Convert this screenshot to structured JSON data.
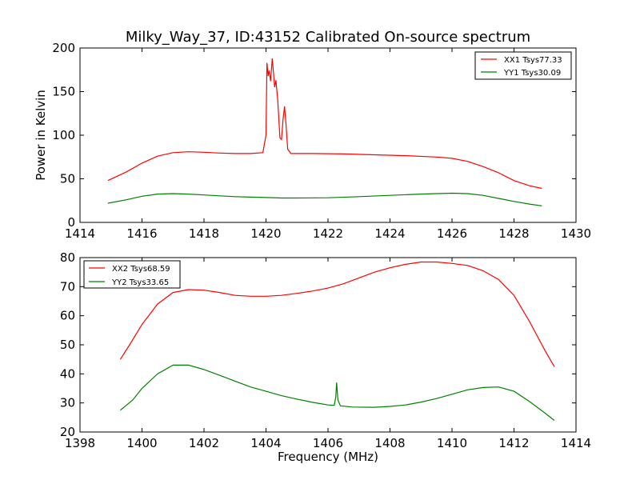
{
  "title": "Milky_Way_37, ID:43152 Calibrated On-source spectrum",
  "chart_data": [
    {
      "type": "line",
      "ylabel": "Power in Kelvin",
      "xlabel": "",
      "xlim": [
        1414,
        1430
      ],
      "ylim": [
        0,
        200
      ],
      "xticks": [
        1414,
        1416,
        1418,
        1420,
        1422,
        1424,
        1426,
        1428,
        1430
      ],
      "yticks": [
        0,
        50,
        100,
        150,
        200
      ],
      "legend_position": "top-right",
      "series": [
        {
          "name": "XX1 Tsys77.33",
          "color": "#ff0000",
          "points": [
            [
              1414.9,
              48
            ],
            [
              1415.5,
              58
            ],
            [
              1416.0,
              68
            ],
            [
              1416.5,
              76
            ],
            [
              1417.0,
              80
            ],
            [
              1417.5,
              81
            ],
            [
              1418.0,
              80.5
            ],
            [
              1418.5,
              79.5
            ],
            [
              1419.0,
              79
            ],
            [
              1419.5,
              79
            ],
            [
              1419.9,
              80
            ],
            [
              1420.0,
              100
            ],
            [
              1420.03,
              183
            ],
            [
              1420.07,
              168
            ],
            [
              1420.1,
              174
            ],
            [
              1420.15,
              162
            ],
            [
              1420.2,
              188
            ],
            [
              1420.25,
              168
            ],
            [
              1420.28,
              155
            ],
            [
              1420.32,
              163
            ],
            [
              1420.38,
              140
            ],
            [
              1420.45,
              97
            ],
            [
              1420.5,
              95
            ],
            [
              1420.55,
              118
            ],
            [
              1420.6,
              133
            ],
            [
              1420.65,
              110
            ],
            [
              1420.7,
              84
            ],
            [
              1420.8,
              79
            ],
            [
              1421.5,
              79
            ],
            [
              1422.5,
              78.5
            ],
            [
              1423.5,
              77.5
            ],
            [
              1424.5,
              76.5
            ],
            [
              1425.5,
              75
            ],
            [
              1426.0,
              73.5
            ],
            [
              1426.5,
              70
            ],
            [
              1427.0,
              64
            ],
            [
              1427.5,
              57
            ],
            [
              1428.0,
              48
            ],
            [
              1428.5,
              42
            ],
            [
              1428.9,
              39
            ]
          ]
        },
        {
          "name": "YY1 Tsys30.09",
          "color": "#008000",
          "points": [
            [
              1414.9,
              22
            ],
            [
              1415.5,
              26
            ],
            [
              1416.0,
              30
            ],
            [
              1416.5,
              32.5
            ],
            [
              1417.0,
              33
            ],
            [
              1417.5,
              32.5
            ],
            [
              1418.0,
              31.5
            ],
            [
              1418.5,
              30.5
            ],
            [
              1419.0,
              29.5
            ],
            [
              1419.5,
              29
            ],
            [
              1420.0,
              28.5
            ],
            [
              1420.5,
              28
            ],
            [
              1421.0,
              28
            ],
            [
              1422.0,
              28.3
            ],
            [
              1423.0,
              29.5
            ],
            [
              1424.0,
              31
            ],
            [
              1425.0,
              32.5
            ],
            [
              1425.5,
              33
            ],
            [
              1426.0,
              33.5
            ],
            [
              1426.5,
              33
            ],
            [
              1427.0,
              31
            ],
            [
              1427.5,
              27.5
            ],
            [
              1428.0,
              24
            ],
            [
              1428.5,
              21
            ],
            [
              1428.9,
              19
            ]
          ]
        }
      ]
    },
    {
      "type": "line",
      "ylabel": "",
      "xlabel": "Frequency (MHz)",
      "xlim": [
        1398,
        1414
      ],
      "ylim": [
        20,
        80
      ],
      "xticks": [
        1398,
        1400,
        1402,
        1404,
        1406,
        1408,
        1410,
        1412,
        1414
      ],
      "yticks": [
        20,
        30,
        40,
        50,
        60,
        70,
        80
      ],
      "legend_position": "top-left",
      "series": [
        {
          "name": "XX2 Tsys68.59",
          "color": "#ff0000",
          "points": [
            [
              1399.3,
              45
            ],
            [
              1399.6,
              50
            ],
            [
              1400.0,
              57
            ],
            [
              1400.5,
              64
            ],
            [
              1401.0,
              68
            ],
            [
              1401.5,
              69
            ],
            [
              1402.0,
              68.8
            ],
            [
              1402.5,
              68
            ],
            [
              1403.0,
              67
            ],
            [
              1403.5,
              66.7
            ],
            [
              1404.0,
              66.7
            ],
            [
              1404.5,
              67
            ],
            [
              1405.0,
              67.7
            ],
            [
              1405.5,
              68.5
            ],
            [
              1406.0,
              69.5
            ],
            [
              1406.5,
              71
            ],
            [
              1407.0,
              73
            ],
            [
              1407.5,
              75
            ],
            [
              1408.0,
              76.5
            ],
            [
              1408.5,
              77.7
            ],
            [
              1409.0,
              78.5
            ],
            [
              1409.5,
              78.5
            ],
            [
              1410.0,
              78
            ],
            [
              1410.5,
              77.3
            ],
            [
              1411.0,
              75.5
            ],
            [
              1411.5,
              72.5
            ],
            [
              1412.0,
              67
            ],
            [
              1412.5,
              58
            ],
            [
              1413.0,
              48
            ],
            [
              1413.3,
              42.5
            ]
          ]
        },
        {
          "name": "YY2 Tsys33.65",
          "color": "#008000",
          "points": [
            [
              1399.3,
              27.5
            ],
            [
              1399.7,
              31
            ],
            [
              1400.0,
              35
            ],
            [
              1400.5,
              40
            ],
            [
              1401.0,
              43
            ],
            [
              1401.5,
              43
            ],
            [
              1402.0,
              41.5
            ],
            [
              1402.5,
              39.5
            ],
            [
              1403.0,
              37.5
            ],
            [
              1403.5,
              35.5
            ],
            [
              1404.0,
              34
            ],
            [
              1404.5,
              32.5
            ],
            [
              1405.0,
              31.3
            ],
            [
              1405.5,
              30.2
            ],
            [
              1406.0,
              29.3
            ],
            [
              1406.2,
              29.2
            ],
            [
              1406.25,
              32
            ],
            [
              1406.28,
              37
            ],
            [
              1406.32,
              31
            ],
            [
              1406.4,
              29
            ],
            [
              1406.8,
              28.6
            ],
            [
              1407.5,
              28.5
            ],
            [
              1408.0,
              28.8
            ],
            [
              1408.5,
              29.3
            ],
            [
              1409.0,
              30.3
            ],
            [
              1409.5,
              31.5
            ],
            [
              1410.0,
              33
            ],
            [
              1410.5,
              34.5
            ],
            [
              1411.0,
              35.3
            ],
            [
              1411.5,
              35.5
            ],
            [
              1412.0,
              34
            ],
            [
              1412.5,
              30.5
            ],
            [
              1413.0,
              26.5
            ],
            [
              1413.3,
              24
            ]
          ]
        }
      ]
    }
  ]
}
